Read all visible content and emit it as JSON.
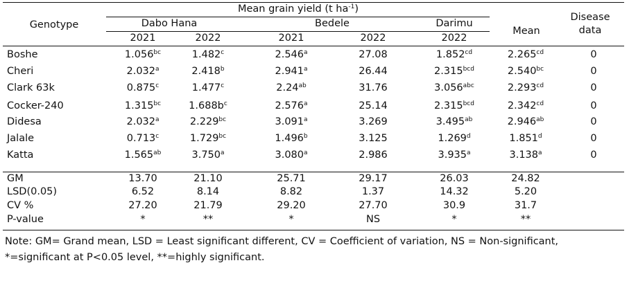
{
  "table": {
    "headers": {
      "genotype": "Genotype",
      "mean_grain_yield": "Mean grain yield (t ha",
      "mean_grain_yield_sup": "-1",
      "mean_grain_yield_end": ")",
      "locations": [
        "Dabo Hana",
        "Bedele",
        "Darimu"
      ],
      "years": [
        "2021",
        "2022",
        "2021",
        "2022",
        "2022"
      ],
      "mean": "Mean",
      "disease_line1": "Disease",
      "disease_line2": "data"
    },
    "rows": [
      {
        "genotype": "Boshe",
        "cells": [
          {
            "v": "1.056",
            "s": "bc"
          },
          {
            "v": "1.482",
            "s": "c"
          },
          {
            "v": "2.546",
            "s": "a"
          },
          {
            "v": "27.08",
            "s": ""
          },
          {
            "v": "1.852",
            "s": "cd"
          },
          {
            "v": "2.265",
            "s": "cd"
          }
        ],
        "disease": "0"
      },
      {
        "genotype": "Cheri",
        "cells": [
          {
            "v": "2.032",
            "s": "a"
          },
          {
            "v": "2.418",
            "s": "b"
          },
          {
            "v": "2.941",
            "s": "a"
          },
          {
            "v": "26.44",
            "s": ""
          },
          {
            "v": "2.315",
            "s": "bcd"
          },
          {
            "v": "2.540",
            "s": "bc"
          }
        ],
        "disease": "0"
      },
      {
        "genotype": "Clark 63k",
        "cells": [
          {
            "v": "0.875",
            "s": "c"
          },
          {
            "v": "1.477",
            "s": "c"
          },
          {
            "v": "2.24",
            "s": "ab"
          },
          {
            "v": "31.76",
            "s": ""
          },
          {
            "v": "3.056",
            "s": "abc"
          },
          {
            "v": "2.293",
            "s": "cd"
          }
        ],
        "disease": "0"
      },
      {
        "genotype": "Cocker-240",
        "cells": [
          {
            "v": "1.315",
            "s": "bc"
          },
          {
            "v": "1.688b",
            "s": "c"
          },
          {
            "v": "2.576",
            "s": "a"
          },
          {
            "v": "25.14",
            "s": ""
          },
          {
            "v": "2.315",
            "s": "bcd"
          },
          {
            "v": "2.342",
            "s": "cd"
          }
        ],
        "disease": "0"
      },
      {
        "genotype": "Didesa",
        "cells": [
          {
            "v": "2.032",
            "s": "a"
          },
          {
            "v": "2.229",
            "s": "bc"
          },
          {
            "v": "3.091",
            "s": "a"
          },
          {
            "v": "3.269",
            "s": ""
          },
          {
            "v": "3.495",
            "s": "ab"
          },
          {
            "v": "2.946",
            "s": "ab"
          }
        ],
        "disease": "0"
      },
      {
        "genotype": "Jalale",
        "cells": [
          {
            "v": "0.713",
            "s": "c"
          },
          {
            "v": "1.729",
            "s": "bc"
          },
          {
            "v": "1.496",
            "s": "b"
          },
          {
            "v": "3.125",
            "s": ""
          },
          {
            "v": "1.269",
            "s": "d"
          },
          {
            "v": "1.851",
            "s": "d"
          }
        ],
        "disease": "0"
      },
      {
        "genotype": "Katta",
        "cells": [
          {
            "v": "1.565",
            "s": "ab"
          },
          {
            "v": "3.750",
            "s": "a"
          },
          {
            "v": "3.080",
            "s": "a"
          },
          {
            "v": "2.986",
            "s": ""
          },
          {
            "v": "3.935",
            "s": "a"
          },
          {
            "v": "3.138",
            "s": "a"
          }
        ],
        "disease": "0"
      }
    ],
    "stats": [
      {
        "label": "GM",
        "values": [
          "13.70",
          "21.10",
          "25.71",
          "29.17",
          "26.03",
          "24.82"
        ]
      },
      {
        "label": "LSD(0.05)",
        "values": [
          "6.52",
          "8.14",
          "8.82",
          "1.37",
          "14.32",
          "5.20"
        ]
      },
      {
        "label": "CV %",
        "values": [
          "27.20",
          "21.79",
          "29.20",
          "27.70",
          "30.9",
          "31.7"
        ]
      },
      {
        "label": "P-value",
        "values": [
          "*",
          "**",
          "*",
          "NS",
          "*",
          "**"
        ]
      }
    ]
  },
  "note": "Note: GM= Grand mean, LSD = Least significant different, CV = Coefficient of variation, NS = Non-significant, *=significant at P<0.05 level, **=highly significant."
}
